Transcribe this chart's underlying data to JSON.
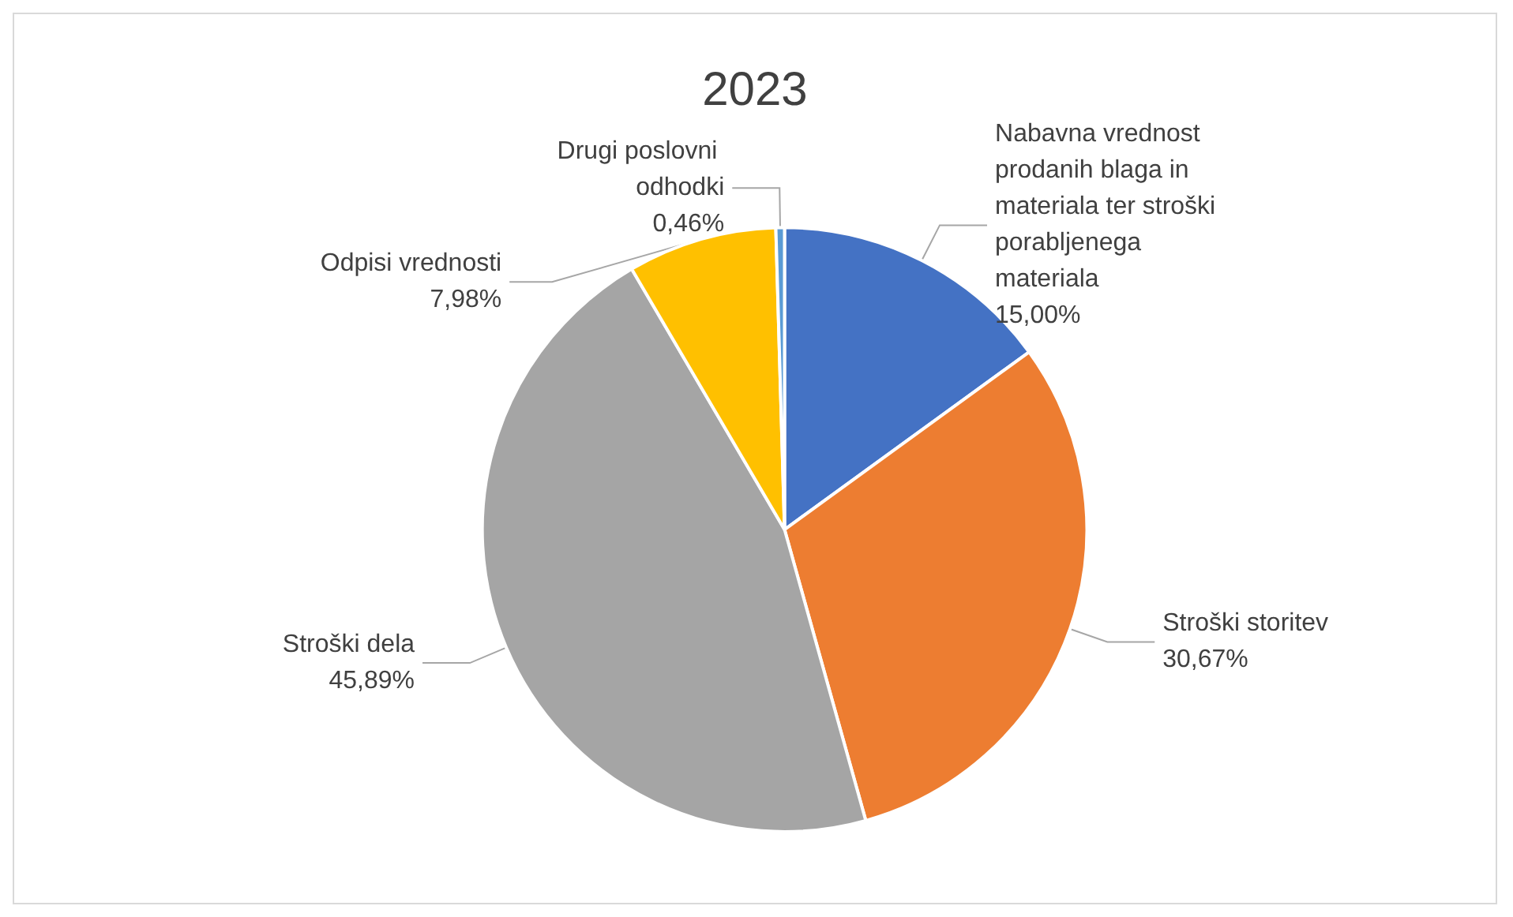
{
  "chart_data": {
    "type": "pie",
    "title": "2023",
    "categories": [
      "Nabavna vrednost prodanih blaga in materiala ter stroški porabljenega materiala",
      "Stroški storitev",
      "Stroški dela",
      "Odpisi vrednosti",
      "Drugi poslovni odhodki"
    ],
    "values": [
      15.0,
      30.67,
      45.89,
      7.98,
      0.46
    ],
    "value_labels": [
      "15,00%",
      "30,67%",
      "45,89%",
      "7,98%",
      "0,46%"
    ],
    "colors": [
      "#4472c4",
      "#ed7d31",
      "#a5a5a5",
      "#ffc000",
      "#5b9bd5"
    ],
    "legend": false
  }
}
